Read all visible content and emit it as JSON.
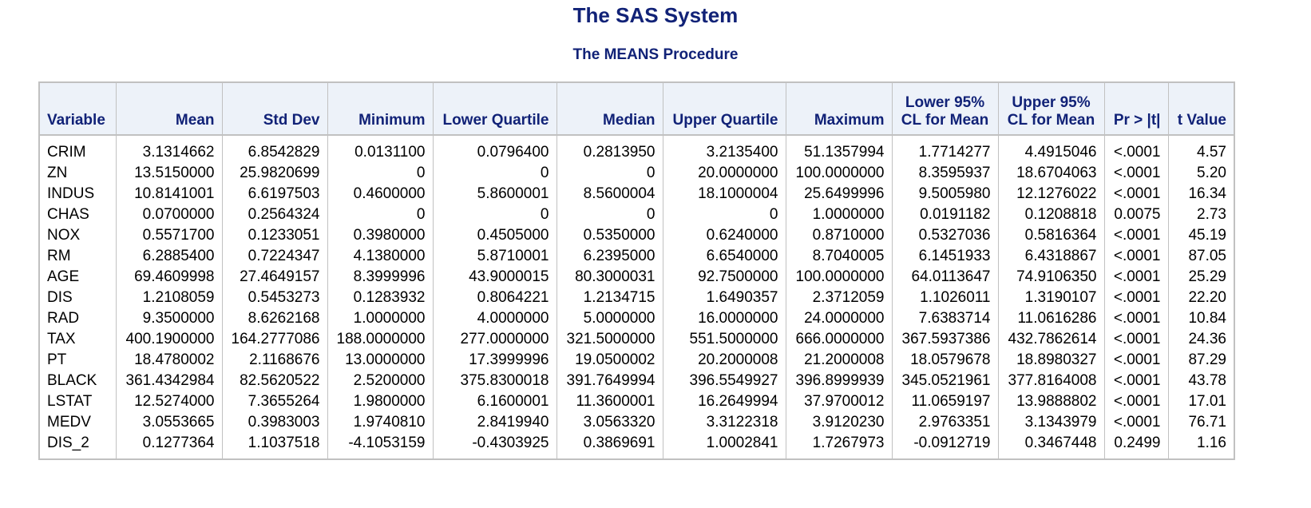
{
  "title": "The SAS System",
  "subtitle": "The MEANS Procedure",
  "headers": {
    "variable": "Variable",
    "mean": "Mean",
    "std_dev": "Std Dev",
    "minimum": "Minimum",
    "lower_quartile": "Lower Quartile",
    "median": "Median",
    "upper_quartile": "Upper Quartile",
    "maximum": "Maximum",
    "lower_cl_1": "Lower 95%",
    "lower_cl_2": "CL for Mean",
    "upper_cl_1": "Upper 95%",
    "upper_cl_2": "CL for Mean",
    "pr_t": "Pr > |t|",
    "t_value": "t Value"
  },
  "rows": [
    [
      "CRIM",
      "3.1314662",
      "6.8542829",
      "0.0131100",
      "0.0796400",
      "0.2813950",
      "3.2135400",
      "51.1357994",
      "1.7714277",
      "4.4915046",
      "<.0001",
      "4.57"
    ],
    [
      "ZN",
      "13.5150000",
      "25.9820699",
      "0",
      "0",
      "0",
      "20.0000000",
      "100.0000000",
      "8.3595937",
      "18.6704063",
      "<.0001",
      "5.20"
    ],
    [
      "INDUS",
      "10.8141001",
      "6.6197503",
      "0.4600000",
      "5.8600001",
      "8.5600004",
      "18.1000004",
      "25.6499996",
      "9.5005980",
      "12.1276022",
      "<.0001",
      "16.34"
    ],
    [
      "CHAS",
      "0.0700000",
      "0.2564324",
      "0",
      "0",
      "0",
      "0",
      "1.0000000",
      "0.0191182",
      "0.1208818",
      "0.0075",
      "2.73"
    ],
    [
      "NOX",
      "0.5571700",
      "0.1233051",
      "0.3980000",
      "0.4505000",
      "0.5350000",
      "0.6240000",
      "0.8710000",
      "0.5327036",
      "0.5816364",
      "<.0001",
      "45.19"
    ],
    [
      "RM",
      "6.2885400",
      "0.7224347",
      "4.1380000",
      "5.8710001",
      "6.2395000",
      "6.6540000",
      "8.7040005",
      "6.1451933",
      "6.4318867",
      "<.0001",
      "87.05"
    ],
    [
      "AGE",
      "69.4609998",
      "27.4649157",
      "8.3999996",
      "43.9000015",
      "80.3000031",
      "92.7500000",
      "100.0000000",
      "64.0113647",
      "74.9106350",
      "<.0001",
      "25.29"
    ],
    [
      "DIS",
      "1.2108059",
      "0.5453273",
      "0.1283932",
      "0.8064221",
      "1.2134715",
      "1.6490357",
      "2.3712059",
      "1.1026011",
      "1.3190107",
      "<.0001",
      "22.20"
    ],
    [
      "RAD",
      "9.3500000",
      "8.6262168",
      "1.0000000",
      "4.0000000",
      "5.0000000",
      "16.0000000",
      "24.0000000",
      "7.6383714",
      "11.0616286",
      "<.0001",
      "10.84"
    ],
    [
      "TAX",
      "400.1900000",
      "164.2777086",
      "188.0000000",
      "277.0000000",
      "321.5000000",
      "551.5000000",
      "666.0000000",
      "367.5937386",
      "432.7862614",
      "<.0001",
      "24.36"
    ],
    [
      "PT",
      "18.4780002",
      "2.1168676",
      "13.0000000",
      "17.3999996",
      "19.0500002",
      "20.2000008",
      "21.2000008",
      "18.0579678",
      "18.8980327",
      "<.0001",
      "87.29"
    ],
    [
      "BLACK",
      "361.4342984",
      "82.5620522",
      "2.5200000",
      "375.8300018",
      "391.7649994",
      "396.5549927",
      "396.8999939",
      "345.0521961",
      "377.8164008",
      "<.0001",
      "43.78"
    ],
    [
      "LSTAT",
      "12.5274000",
      "7.3655264",
      "1.9800000",
      "6.1600001",
      "11.3600001",
      "16.2649994",
      "37.9700012",
      "11.0659197",
      "13.9888802",
      "<.0001",
      "17.01"
    ],
    [
      "MEDV",
      "3.0553665",
      "0.3983003",
      "1.9740810",
      "2.8419940",
      "3.0563320",
      "3.3122318",
      "3.9120230",
      "2.9763351",
      "3.1343979",
      "<.0001",
      "76.71"
    ],
    [
      "DIS_2",
      "0.1277364",
      "1.1037518",
      "-4.1053159",
      "-0.4303925",
      "0.3869691",
      "1.0002841",
      "1.7267973",
      "-0.0912719",
      "0.3467448",
      "0.2499",
      "1.16"
    ]
  ]
}
